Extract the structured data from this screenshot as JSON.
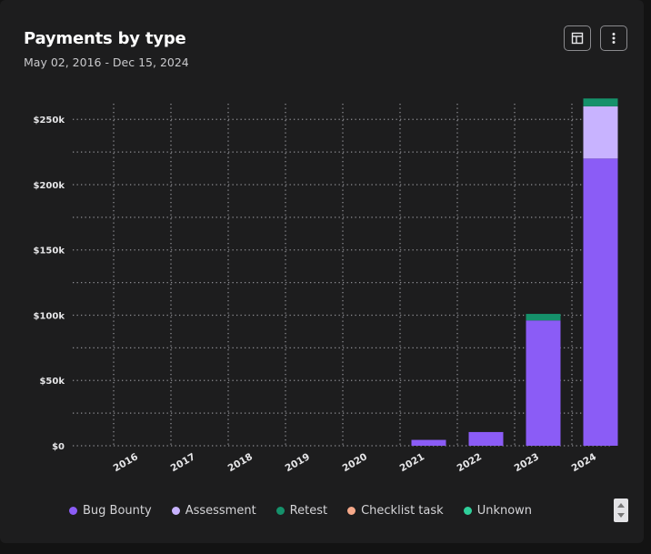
{
  "header": {
    "title": "Payments by type",
    "date_range": "May 02, 2016 - Dec 15, 2024"
  },
  "toolbar": {
    "layout_icon": "table-layout-icon",
    "more_icon": "vertical-dots-icon"
  },
  "chart_data": {
    "type": "bar",
    "stacked": true,
    "categories": [
      "2016",
      "2017",
      "2018",
      "2019",
      "2020",
      "2021",
      "2022",
      "2023",
      "2024"
    ],
    "series": [
      {
        "name": "Bug Bounty",
        "color": "#8b5cf6",
        "values": [
          0,
          0,
          0,
          0,
          0,
          4500,
          10500,
          96000,
          220000
        ]
      },
      {
        "name": "Assessment",
        "color": "#c8b3ff",
        "values": [
          0,
          0,
          0,
          0,
          0,
          0,
          0,
          0,
          40000
        ]
      },
      {
        "name": "Retest",
        "color": "#15916b",
        "values": [
          0,
          0,
          0,
          0,
          0,
          0,
          0,
          5000,
          6000
        ]
      },
      {
        "name": "Checklist task",
        "color": "#f6a98a",
        "values": [
          0,
          0,
          0,
          0,
          0,
          0,
          0,
          0,
          0
        ]
      },
      {
        "name": "Unknown",
        "color": "#2fcf9a",
        "values": [
          0,
          0,
          0,
          0,
          0,
          0,
          0,
          0,
          0
        ]
      }
    ],
    "yticks": [
      0,
      50000,
      100000,
      150000,
      200000,
      250000
    ],
    "ytick_labels": [
      "$0",
      "$50k",
      "$100k",
      "$150k",
      "$200k",
      "$250k"
    ],
    "ylim": [
      0,
      262000
    ],
    "grid": true,
    "legend_position": "bottom-left"
  }
}
